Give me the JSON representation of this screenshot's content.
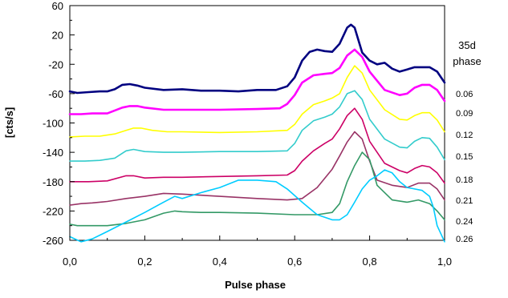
{
  "chart_data": {
    "type": "line",
    "title": "",
    "xlabel": "Pulse phase",
    "ylabel": "[cts/s]",
    "xlim": [
      0,
      1
    ],
    "ylim": [
      -260,
      60
    ],
    "xticks": [
      0,
      0.2,
      0.4,
      0.6,
      0.8,
      1.0
    ],
    "xtick_labels": [
      "0,0",
      "0,2",
      "0,4",
      "0,6",
      "0,8",
      "1,0"
    ],
    "yticks": [
      60,
      20,
      -20,
      -60,
      -100,
      -140,
      -180,
      -220,
      -260
    ],
    "ytick_labels": [
      "60",
      "20",
      "-20",
      "-60",
      "-100",
      "-140",
      "-180",
      "-220",
      "-260"
    ],
    "grid": false,
    "legend_title": [
      "35d",
      "phase"
    ],
    "series": [
      {
        "name": "0.06",
        "color": "#000080",
        "x": [
          0.0,
          0.02,
          0.05,
          0.08,
          0.1,
          0.12,
          0.14,
          0.16,
          0.18,
          0.2,
          0.25,
          0.3,
          0.35,
          0.4,
          0.45,
          0.5,
          0.55,
          0.58,
          0.6,
          0.62,
          0.64,
          0.66,
          0.68,
          0.7,
          0.72,
          0.74,
          0.75,
          0.76,
          0.78,
          0.8,
          0.82,
          0.84,
          0.86,
          0.88,
          0.9,
          0.92,
          0.94,
          0.96,
          0.98,
          1.0
        ],
        "y": [
          -57,
          -59,
          -58,
          -57,
          -57,
          -54,
          -48,
          -47,
          -49,
          -52,
          -55,
          -54,
          -56,
          -56,
          -57,
          -55,
          -55,
          -50,
          -38,
          -15,
          -3,
          0,
          -2,
          -3,
          8,
          30,
          34,
          30,
          -4,
          -15,
          -20,
          -18,
          -26,
          -30,
          -27,
          -24,
          -24,
          -24,
          -30,
          -45
        ]
      },
      {
        "name": "0.09",
        "color": "#ff00ff",
        "x": [
          0.0,
          0.03,
          0.06,
          0.1,
          0.14,
          0.16,
          0.18,
          0.2,
          0.25,
          0.3,
          0.4,
          0.5,
          0.56,
          0.58,
          0.6,
          0.62,
          0.65,
          0.68,
          0.7,
          0.72,
          0.74,
          0.76,
          0.78,
          0.8,
          0.84,
          0.88,
          0.9,
          0.92,
          0.94,
          0.96,
          0.98,
          1.0
        ],
        "y": [
          -88,
          -88,
          -87,
          -87,
          -79,
          -77,
          -77,
          -79,
          -82,
          -82,
          -82,
          -81,
          -80,
          -74,
          -62,
          -45,
          -35,
          -33,
          -32,
          -25,
          -8,
          0,
          -10,
          -30,
          -55,
          -62,
          -60,
          -52,
          -48,
          -48,
          -55,
          -70
        ]
      },
      {
        "name": "0.12",
        "color": "#ffff00",
        "x": [
          0.0,
          0.04,
          0.08,
          0.12,
          0.15,
          0.17,
          0.19,
          0.22,
          0.26,
          0.3,
          0.4,
          0.5,
          0.58,
          0.6,
          0.62,
          0.65,
          0.68,
          0.7,
          0.72,
          0.74,
          0.76,
          0.78,
          0.8,
          0.84,
          0.88,
          0.9,
          0.92,
          0.94,
          0.96,
          0.98,
          1.0
        ],
        "y": [
          -119,
          -118,
          -118,
          -115,
          -110,
          -107,
          -107,
          -110,
          -112,
          -112,
          -113,
          -112,
          -110,
          -102,
          -88,
          -75,
          -70,
          -66,
          -60,
          -38,
          -22,
          -32,
          -55,
          -82,
          -95,
          -96,
          -90,
          -86,
          -86,
          -96,
          -112
        ]
      },
      {
        "name": "0.15",
        "color": "#33cccc",
        "x": [
          0.0,
          0.04,
          0.08,
          0.12,
          0.15,
          0.17,
          0.2,
          0.25,
          0.3,
          0.4,
          0.5,
          0.58,
          0.6,
          0.62,
          0.65,
          0.68,
          0.7,
          0.72,
          0.74,
          0.76,
          0.78,
          0.8,
          0.84,
          0.88,
          0.9,
          0.92,
          0.94,
          0.96,
          0.98,
          1.0
        ],
        "y": [
          -152,
          -152,
          -151,
          -148,
          -138,
          -136,
          -139,
          -140,
          -140,
          -139,
          -139,
          -138,
          -128,
          -110,
          -97,
          -92,
          -88,
          -78,
          -60,
          -56,
          -68,
          -95,
          -122,
          -133,
          -134,
          -125,
          -120,
          -121,
          -133,
          -150
        ]
      },
      {
        "name": "0.18",
        "color": "#cc0066",
        "x": [
          0.0,
          0.05,
          0.1,
          0.15,
          0.17,
          0.2,
          0.25,
          0.3,
          0.4,
          0.5,
          0.58,
          0.6,
          0.62,
          0.65,
          0.68,
          0.7,
          0.72,
          0.74,
          0.76,
          0.78,
          0.8,
          0.84,
          0.88,
          0.9,
          0.92,
          0.94,
          0.96,
          0.98,
          1.0
        ],
        "y": [
          -180,
          -180,
          -179,
          -172,
          -172,
          -175,
          -174,
          -174,
          -173,
          -172,
          -171,
          -165,
          -152,
          -138,
          -128,
          -122,
          -108,
          -90,
          -80,
          -95,
          -125,
          -155,
          -165,
          -168,
          -162,
          -158,
          -160,
          -168,
          -182
        ]
      },
      {
        "name": "0.21",
        "color": "#993366",
        "x": [
          0.0,
          0.03,
          0.06,
          0.1,
          0.15,
          0.2,
          0.25,
          0.3,
          0.4,
          0.5,
          0.58,
          0.62,
          0.66,
          0.7,
          0.72,
          0.74,
          0.76,
          0.78,
          0.8,
          0.82,
          0.86,
          0.9,
          0.93,
          0.96,
          0.98,
          1.0
        ],
        "y": [
          -212,
          -210,
          -209,
          -207,
          -203,
          -200,
          -196,
          -197,
          -200,
          -203,
          -205,
          -203,
          -188,
          -163,
          -145,
          -126,
          -112,
          -122,
          -152,
          -178,
          -185,
          -188,
          -182,
          -182,
          -190,
          -205
        ]
      },
      {
        "name": "0.24",
        "color": "#339966",
        "x": [
          0.0,
          0.02,
          0.05,
          0.1,
          0.15,
          0.2,
          0.25,
          0.28,
          0.3,
          0.35,
          0.4,
          0.5,
          0.6,
          0.66,
          0.7,
          0.72,
          0.74,
          0.76,
          0.78,
          0.8,
          0.82,
          0.86,
          0.9,
          0.93,
          0.96,
          0.98,
          1.0
        ],
        "y": [
          -238,
          -240,
          -240,
          -240,
          -237,
          -232,
          -223,
          -220,
          -221,
          -222,
          -222,
          -223,
          -225,
          -225,
          -222,
          -210,
          -180,
          -158,
          -140,
          -150,
          -185,
          -205,
          -208,
          -205,
          -210,
          -220,
          -232
        ]
      },
      {
        "name": "0.26",
        "color": "#00ccff",
        "x": [
          0.0,
          0.03,
          0.06,
          0.1,
          0.15,
          0.2,
          0.25,
          0.28,
          0.3,
          0.35,
          0.4,
          0.45,
          0.5,
          0.55,
          0.58,
          0.62,
          0.66,
          0.7,
          0.72,
          0.74,
          0.76,
          0.78,
          0.8,
          0.82,
          0.84,
          0.86,
          0.88,
          0.9,
          0.92,
          0.94,
          0.96,
          0.97,
          0.98,
          1.0
        ],
        "y": [
          -255,
          -262,
          -258,
          -248,
          -235,
          -222,
          -208,
          -200,
          -203,
          -195,
          -188,
          -178,
          -178,
          -180,
          -190,
          -208,
          -225,
          -232,
          -232,
          -225,
          -208,
          -190,
          -178,
          -172,
          -164,
          -168,
          -180,
          -188,
          -190,
          -192,
          -200,
          -215,
          -240,
          -262
        ]
      }
    ]
  }
}
